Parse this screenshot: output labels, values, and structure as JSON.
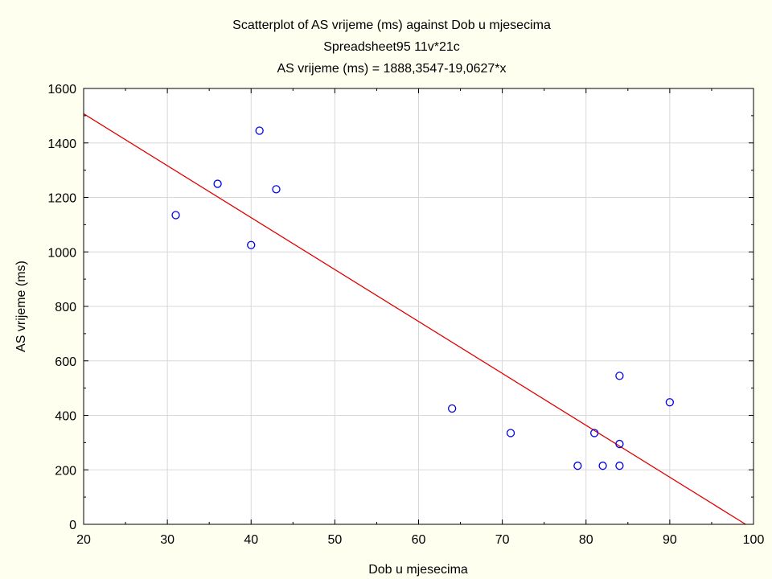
{
  "chart_data": {
    "type": "scatter",
    "title": "Scatterplot of AS vrijeme (ms) against Dob u mjesecima",
    "subtitle": "Spreadsheet95 11v*21c",
    "equation": "AS vrijeme (ms) = 1888,3547-19,0627*x",
    "xlabel": "Dob u mjesecima",
    "ylabel": "AS vrijeme (ms)",
    "xlim": [
      20,
      100
    ],
    "ylim": [
      0,
      1600
    ],
    "x_ticks": [
      20,
      30,
      40,
      50,
      60,
      70,
      80,
      90,
      100
    ],
    "y_ticks": [
      0,
      200,
      400,
      600,
      800,
      1000,
      1200,
      1400,
      1600
    ],
    "grid": true,
    "fit_line": {
      "intercept": 1888.3547,
      "slope": -19.0627
    },
    "points": [
      {
        "x": 31,
        "y": 1135
      },
      {
        "x": 36,
        "y": 1250
      },
      {
        "x": 40,
        "y": 1025
      },
      {
        "x": 41,
        "y": 1445
      },
      {
        "x": 43,
        "y": 1230
      },
      {
        "x": 64,
        "y": 425
      },
      {
        "x": 71,
        "y": 335
      },
      {
        "x": 79,
        "y": 215
      },
      {
        "x": 81,
        "y": 335
      },
      {
        "x": 82,
        "y": 215
      },
      {
        "x": 84,
        "y": 545
      },
      {
        "x": 84,
        "y": 295
      },
      {
        "x": 84,
        "y": 215
      },
      {
        "x": 90,
        "y": 448
      }
    ],
    "colors": {
      "background": "#FFFFF0",
      "plot_background": "#FFFFFF",
      "grid": "#D8D8D8",
      "points": "#0000E0",
      "fit_line": "#E00000"
    }
  }
}
